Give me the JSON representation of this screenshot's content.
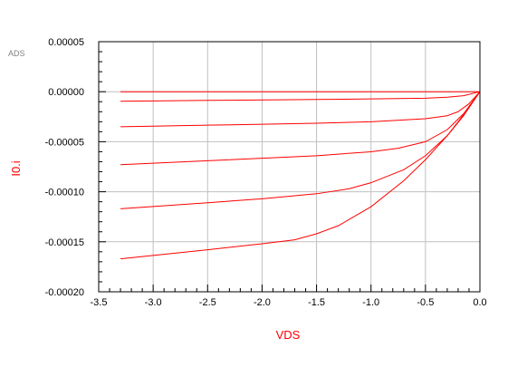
{
  "brand_label": "ADS",
  "chart_data": {
    "type": "line",
    "title": "",
    "xlabel": "VDS",
    "ylabel": "I0.i",
    "xlim": [
      -3.5,
      0.0
    ],
    "ylim": [
      -0.0002,
      5e-05
    ],
    "grid": true,
    "x_ticks": [
      -3.5,
      -3.0,
      -2.5,
      -2.0,
      -1.5,
      -1.0,
      -0.5,
      0.0
    ],
    "x_tick_labels": [
      "-3.5",
      "-3.0",
      "-2.5",
      "-2.0",
      "-1.5",
      "-1.0",
      "-0.5",
      "0.0"
    ],
    "y_ticks": [
      5e-05,
      0.0,
      -5e-05,
      -0.0001,
      -0.00015,
      -0.0002
    ],
    "y_tick_labels": [
      "0.00005",
      "0.00000",
      "-0.00005",
      "-0.00010",
      "-0.00015",
      "-0.00020"
    ],
    "colors": {
      "series": "#ff0000",
      "axis_title": "#ff0000",
      "grid": "#c0c0c0",
      "axis": "#000000",
      "brand": "#808080"
    },
    "series": [
      {
        "x": [
          -3.3,
          -2.5,
          -1.5,
          -1.0,
          -0.5,
          -0.2,
          0.0
        ],
        "y": [
          0.0,
          0.0,
          0.0,
          0.0,
          0.0,
          0.0,
          0.0
        ]
      },
      {
        "x": [
          -3.3,
          -2.5,
          -1.5,
          -1.0,
          -0.5,
          -0.3,
          -0.15,
          0.0
        ],
        "y": [
          -9.5e-06,
          -8.7e-06,
          -7.8e-06,
          -7.2e-06,
          -6.5e-06,
          -5.5e-06,
          -4e-06,
          0.0
        ]
      },
      {
        "x": [
          -3.3,
          -2.5,
          -2.0,
          -1.5,
          -1.0,
          -0.5,
          -0.3,
          -0.2,
          -0.1,
          0.0
        ],
        "y": [
          -3.5e-05,
          -3.35e-05,
          -3.25e-05,
          -3.15e-05,
          -3e-05,
          -2.7e-05,
          -2.4e-05,
          -2e-05,
          -1.2e-05,
          0.0
        ]
      },
      {
        "x": [
          -3.3,
          -2.5,
          -2.0,
          -1.5,
          -1.0,
          -0.75,
          -0.5,
          -0.3,
          -0.15,
          0.0
        ],
        "y": [
          -7.3e-05,
          -6.9e-05,
          -6.65e-05,
          -6.4e-05,
          -6e-05,
          -5.65e-05,
          -5e-05,
          -3.8e-05,
          -2.2e-05,
          0.0
        ]
      },
      {
        "x": [
          -3.3,
          -2.5,
          -2.0,
          -1.5,
          -1.2,
          -1.0,
          -0.7,
          -0.5,
          -0.3,
          -0.15,
          0.0
        ],
        "y": [
          -0.000117,
          -0.000111,
          -0.000107,
          -0.000102,
          -9.7e-05,
          -9.1e-05,
          -7.8e-05,
          -6.4e-05,
          -4.4e-05,
          -2.4e-05,
          0.0
        ]
      },
      {
        "x": [
          -3.3,
          -2.5,
          -2.0,
          -1.7,
          -1.5,
          -1.3,
          -1.0,
          -0.7,
          -0.5,
          -0.3,
          -0.15,
          0.0
        ],
        "y": [
          -0.000167,
          -0.000158,
          -0.000152,
          -0.000148,
          -0.000142,
          -0.000134,
          -0.000115,
          -8.9e-05,
          -6.8e-05,
          -4.4e-05,
          -2.3e-05,
          0.0
        ]
      }
    ]
  }
}
